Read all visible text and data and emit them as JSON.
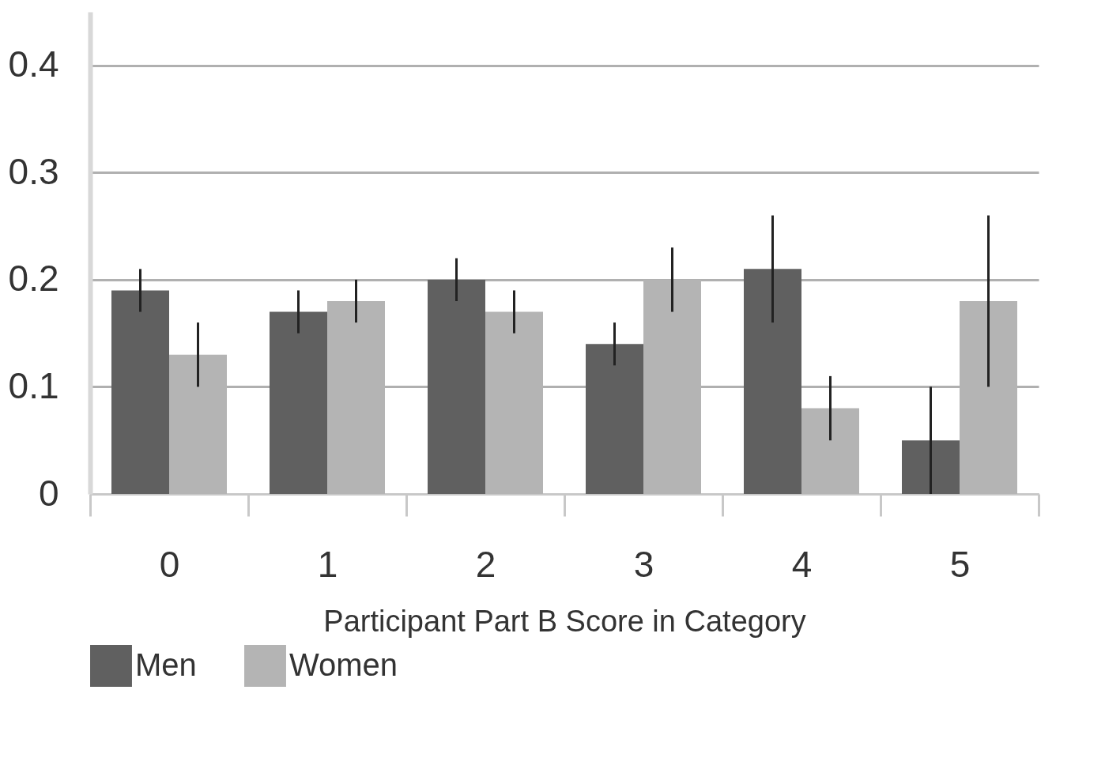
{
  "chart_data": {
    "type": "bar",
    "xlabel": "Participant Part B Score in Category",
    "categories": [
      "0",
      "1",
      "2",
      "3",
      "4",
      "5"
    ],
    "series": [
      {
        "name": "Men",
        "color": "#606060",
        "values": [
          0.19,
          0.17,
          0.2,
          0.14,
          0.21,
          0.05
        ],
        "errors": [
          0.02,
          0.02,
          0.02,
          0.02,
          0.05,
          0.05
        ]
      },
      {
        "name": "Women",
        "color": "#b4b4b4",
        "values": [
          0.13,
          0.18,
          0.17,
          0.2,
          0.08,
          0.18
        ],
        "errors": [
          0.03,
          0.02,
          0.02,
          0.03,
          0.03,
          0.08
        ]
      }
    ],
    "ylim": [
      0,
      0.45
    ],
    "yticks": [
      0,
      0.1,
      0.2,
      0.3,
      0.4
    ],
    "grid": "y",
    "legend": "bottom"
  }
}
